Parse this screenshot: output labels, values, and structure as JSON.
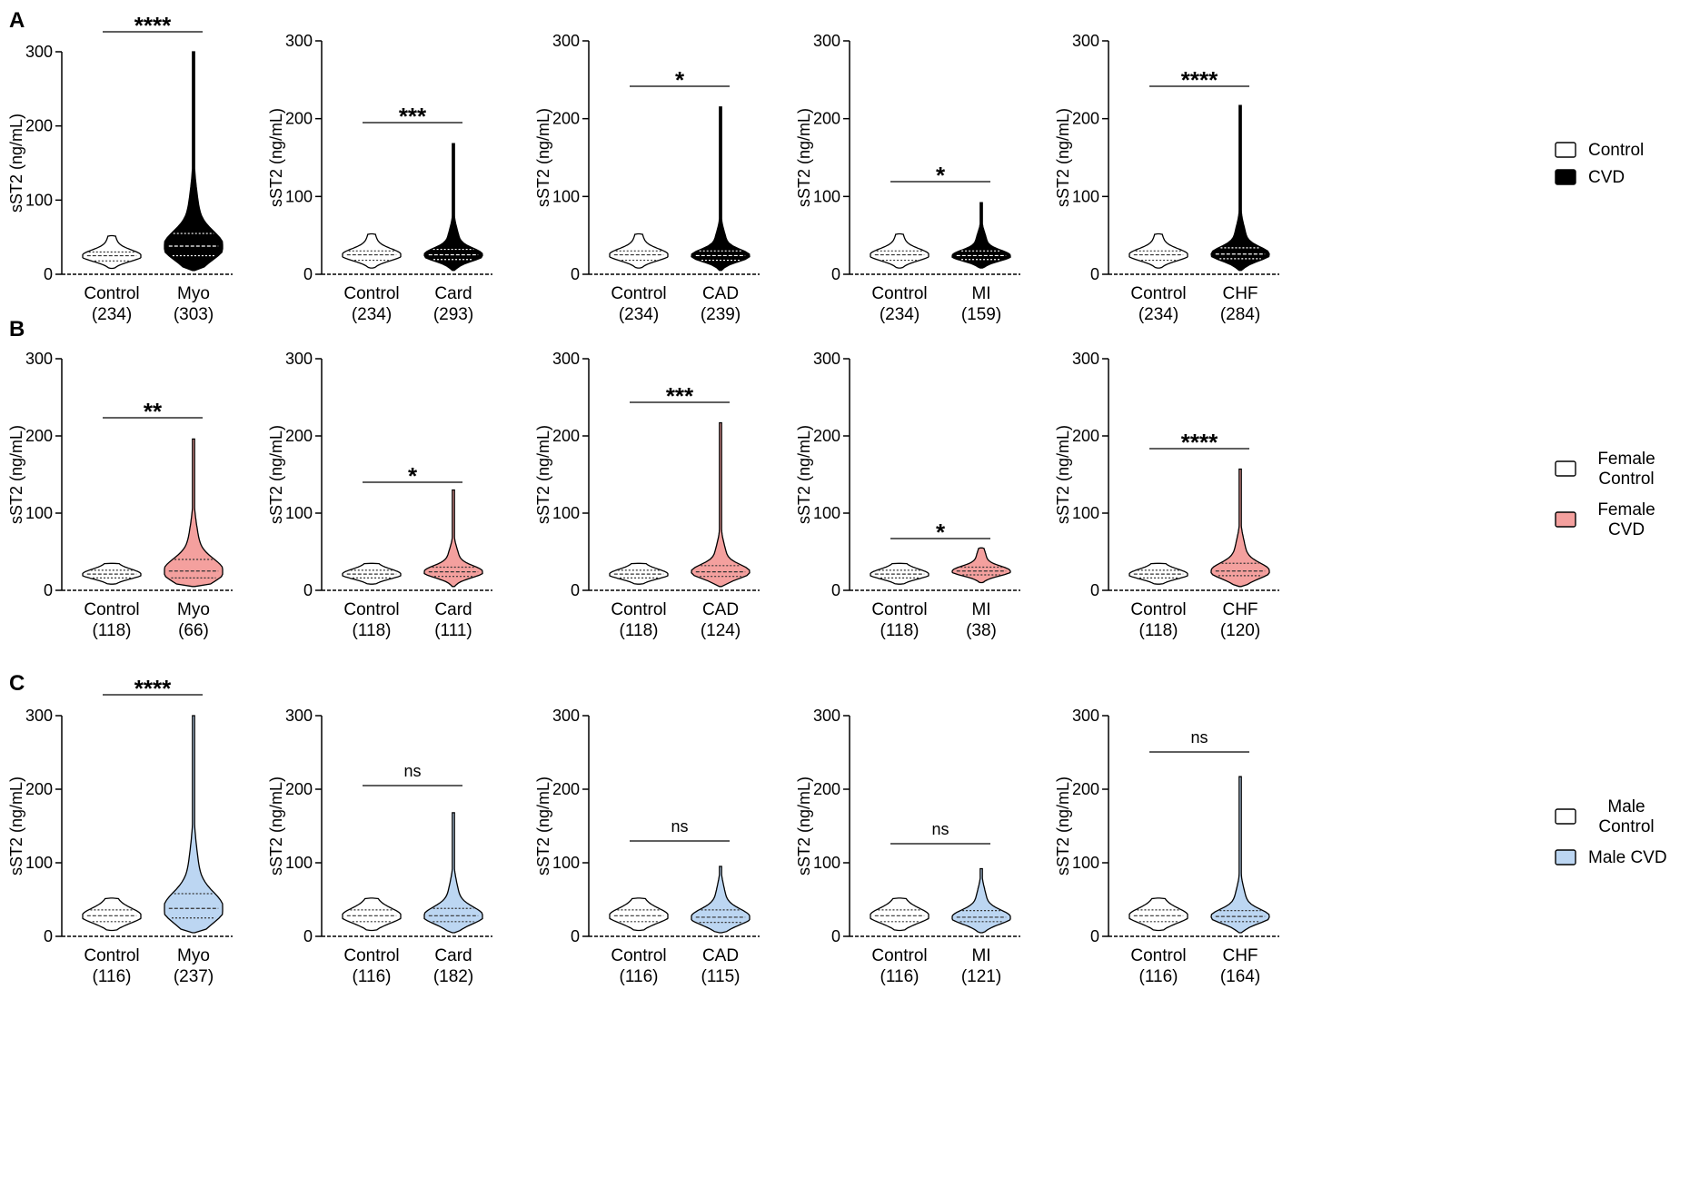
{
  "figure": {
    "y_axis_label": "sST2 (ng/mL)",
    "y_ticks": [
      "0",
      "100",
      "200",
      "300"
    ],
    "control_label": "Control",
    "rows": [
      {
        "panel_letter": "A",
        "legend": [
          {
            "lines": [
              "Control"
            ],
            "fill": "#ffffff"
          },
          {
            "lines": [
              "CVD"
            ],
            "fill": "#000000"
          }
        ]
      },
      {
        "panel_letter": "B",
        "legend": [
          {
            "lines": [
              "Female",
              "Control"
            ],
            "fill": "#ffffff"
          },
          {
            "lines": [
              "Female",
              "CVD"
            ],
            "fill": "#f4a09e"
          }
        ]
      },
      {
        "panel_letter": "C",
        "legend": [
          {
            "lines": [
              "Male",
              "Control"
            ],
            "fill": "#ffffff"
          },
          {
            "lines": [
              "Male CVD"
            ],
            "fill": "#bcd6f2"
          }
        ]
      }
    ]
  },
  "chart_data": [
    {
      "type": "violin",
      "row": "A",
      "title": "",
      "xlabel": "",
      "ylabel": "sST2 (ng/mL)",
      "ylim": [
        0,
        300
      ],
      "categories": [
        "Control",
        "Myo"
      ],
      "n": [
        "(234)",
        "(303)"
      ],
      "significance": "****",
      "series": [
        {
          "name": "Control",
          "median": 25,
          "q1": 18,
          "q3": 30,
          "min": 8,
          "max": 52,
          "fill": "#ffffff"
        },
        {
          "name": "Myo",
          "median": 38,
          "q1": 25,
          "q3": 55,
          "min": 5,
          "max": 300,
          "fill": "#000000"
        }
      ]
    },
    {
      "type": "violin",
      "row": "A",
      "title": "",
      "xlabel": "",
      "ylabel": "sST2 (ng/mL)",
      "ylim": [
        0,
        300
      ],
      "categories": [
        "Control",
        "Card"
      ],
      "n": [
        "(234)",
        "(293)"
      ],
      "significance": "***",
      "series": [
        {
          "name": "Control",
          "median": 25,
          "q1": 18,
          "q3": 30,
          "min": 8,
          "max": 52,
          "fill": "#ffffff"
        },
        {
          "name": "Card",
          "median": 25,
          "q1": 19,
          "q3": 32,
          "min": 5,
          "max": 168,
          "fill": "#000000"
        }
      ]
    },
    {
      "type": "violin",
      "row": "A",
      "title": "",
      "xlabel": "",
      "ylabel": "sST2 (ng/mL)",
      "ylim": [
        0,
        300
      ],
      "categories": [
        "Control",
        "CAD"
      ],
      "n": [
        "(234)",
        "(239)"
      ],
      "significance": "*",
      "series": [
        {
          "name": "Control",
          "median": 25,
          "q1": 18,
          "q3": 30,
          "min": 8,
          "max": 52,
          "fill": "#ffffff"
        },
        {
          "name": "CAD",
          "median": 24,
          "q1": 18,
          "q3": 30,
          "min": 5,
          "max": 215,
          "fill": "#000000"
        }
      ]
    },
    {
      "type": "violin",
      "row": "A",
      "title": "",
      "xlabel": "",
      "ylabel": "sST2 (ng/mL)",
      "ylim": [
        0,
        300
      ],
      "categories": [
        "Control",
        "MI"
      ],
      "n": [
        "(234)",
        "(159)"
      ],
      "significance": "*",
      "series": [
        {
          "name": "Control",
          "median": 25,
          "q1": 18,
          "q3": 30,
          "min": 8,
          "max": 52,
          "fill": "#ffffff"
        },
        {
          "name": "MI",
          "median": 24,
          "q1": 19,
          "q3": 30,
          "min": 8,
          "max": 92,
          "fill": "#000000"
        }
      ]
    },
    {
      "type": "violin",
      "row": "A",
      "title": "",
      "xlabel": "",
      "ylabel": "sST2 (ng/mL)",
      "ylim": [
        0,
        300
      ],
      "categories": [
        "Control",
        "CHF"
      ],
      "n": [
        "(234)",
        "(284)"
      ],
      "significance": "****",
      "series": [
        {
          "name": "Control",
          "median": 25,
          "q1": 18,
          "q3": 30,
          "min": 8,
          "max": 52,
          "fill": "#ffffff"
        },
        {
          "name": "CHF",
          "median": 26,
          "q1": 20,
          "q3": 34,
          "min": 5,
          "max": 217,
          "fill": "#000000"
        }
      ]
    },
    {
      "type": "violin",
      "row": "B",
      "title": "",
      "xlabel": "",
      "ylabel": "sST2 (ng/mL)",
      "ylim": [
        0,
        300
      ],
      "categories": [
        "Control",
        "Myo"
      ],
      "n": [
        "(118)",
        "(66)"
      ],
      "significance": "**",
      "series": [
        {
          "name": "Control",
          "median": 21,
          "q1": 16,
          "q3": 26,
          "min": 8,
          "max": 35,
          "fill": "#ffffff"
        },
        {
          "name": "Myo",
          "median": 25,
          "q1": 16,
          "q3": 40,
          "min": 5,
          "max": 196,
          "fill": "#f4a09e"
        }
      ]
    },
    {
      "type": "violin",
      "row": "B",
      "title": "",
      "xlabel": "",
      "ylabel": "sST2 (ng/mL)",
      "ylim": [
        0,
        300
      ],
      "categories": [
        "Control",
        "Card"
      ],
      "n": [
        "(118)",
        "(111)"
      ],
      "significance": "*",
      "series": [
        {
          "name": "Control",
          "median": 21,
          "q1": 16,
          "q3": 26,
          "min": 8,
          "max": 35,
          "fill": "#ffffff"
        },
        {
          "name": "Card",
          "median": 24,
          "q1": 18,
          "q3": 30,
          "min": 5,
          "max": 130,
          "fill": "#f4a09e"
        }
      ]
    },
    {
      "type": "violin",
      "row": "B",
      "title": "",
      "xlabel": "",
      "ylabel": "sST2 (ng/mL)",
      "ylim": [
        0,
        300
      ],
      "categories": [
        "Control",
        "CAD"
      ],
      "n": [
        "(118)",
        "(124)"
      ],
      "significance": "***",
      "series": [
        {
          "name": "Control",
          "median": 21,
          "q1": 16,
          "q3": 26,
          "min": 8,
          "max": 35,
          "fill": "#ffffff"
        },
        {
          "name": "CAD",
          "median": 24,
          "q1": 18,
          "q3": 32,
          "min": 5,
          "max": 217,
          "fill": "#f4a09e"
        }
      ]
    },
    {
      "type": "violin",
      "row": "B",
      "title": "",
      "xlabel": "",
      "ylabel": "sST2 (ng/mL)",
      "ylim": [
        0,
        300
      ],
      "categories": [
        "Control",
        "MI"
      ],
      "n": [
        "(118)",
        "(38)"
      ],
      "significance": "*",
      "series": [
        {
          "name": "Control",
          "median": 21,
          "q1": 16,
          "q3": 26,
          "min": 8,
          "max": 35,
          "fill": "#ffffff"
        },
        {
          "name": "MI",
          "median": 25,
          "q1": 20,
          "q3": 30,
          "min": 10,
          "max": 55,
          "fill": "#f4a09e"
        }
      ]
    },
    {
      "type": "violin",
      "row": "B",
      "title": "",
      "xlabel": "",
      "ylabel": "sST2 (ng/mL)",
      "ylim": [
        0,
        300
      ],
      "categories": [
        "Control",
        "CHF"
      ],
      "n": [
        "(118)",
        "(120)"
      ],
      "significance": "****",
      "series": [
        {
          "name": "Control",
          "median": 21,
          "q1": 16,
          "q3": 26,
          "min": 8,
          "max": 35,
          "fill": "#ffffff"
        },
        {
          "name": "CHF",
          "median": 25,
          "q1": 19,
          "q3": 35,
          "min": 5,
          "max": 157,
          "fill": "#f4a09e"
        }
      ]
    },
    {
      "type": "violin",
      "row": "C",
      "title": "",
      "xlabel": "",
      "ylabel": "sST2 (ng/mL)",
      "ylim": [
        0,
        300
      ],
      "categories": [
        "Control",
        "Myo"
      ],
      "n": [
        "(116)",
        "(237)"
      ],
      "significance": "****",
      "series": [
        {
          "name": "Control",
          "median": 28,
          "q1": 20,
          "q3": 36,
          "min": 8,
          "max": 52,
          "fill": "#ffffff"
        },
        {
          "name": "Myo",
          "median": 38,
          "q1": 25,
          "q3": 58,
          "min": 5,
          "max": 300,
          "fill": "#bcd6f2"
        }
      ]
    },
    {
      "type": "violin",
      "row": "C",
      "title": "",
      "xlabel": "",
      "ylabel": "sST2 (ng/mL)",
      "ylim": [
        0,
        300
      ],
      "categories": [
        "Control",
        "Card"
      ],
      "n": [
        "(116)",
        "(182)"
      ],
      "significance": "ns",
      "series": [
        {
          "name": "Control",
          "median": 28,
          "q1": 20,
          "q3": 36,
          "min": 8,
          "max": 52,
          "fill": "#ffffff"
        },
        {
          "name": "Card",
          "median": 28,
          "q1": 20,
          "q3": 38,
          "min": 5,
          "max": 168,
          "fill": "#bcd6f2"
        }
      ]
    },
    {
      "type": "violin",
      "row": "C",
      "title": "",
      "xlabel": "",
      "ylabel": "sST2 (ng/mL)",
      "ylim": [
        0,
        300
      ],
      "categories": [
        "Control",
        "CAD"
      ],
      "n": [
        "(116)",
        "(115)"
      ],
      "significance": "ns",
      "series": [
        {
          "name": "Control",
          "median": 28,
          "q1": 20,
          "q3": 36,
          "min": 8,
          "max": 52,
          "fill": "#ffffff"
        },
        {
          "name": "CAD",
          "median": 26,
          "q1": 19,
          "q3": 36,
          "min": 5,
          "max": 95,
          "fill": "#bcd6f2"
        }
      ]
    },
    {
      "type": "violin",
      "row": "C",
      "title": "",
      "xlabel": "",
      "ylabel": "sST2 (ng/mL)",
      "ylim": [
        0,
        300
      ],
      "categories": [
        "Control",
        "MI"
      ],
      "n": [
        "(116)",
        "(121)"
      ],
      "significance": "ns",
      "series": [
        {
          "name": "Control",
          "median": 28,
          "q1": 20,
          "q3": 36,
          "min": 8,
          "max": 52,
          "fill": "#ffffff"
        },
        {
          "name": "MI",
          "median": 26,
          "q1": 20,
          "q3": 35,
          "min": 5,
          "max": 92,
          "fill": "#bcd6f2"
        }
      ]
    },
    {
      "type": "violin",
      "row": "C",
      "title": "",
      "xlabel": "",
      "ylabel": "sST2 (ng/mL)",
      "ylim": [
        0,
        300
      ],
      "categories": [
        "Control",
        "CHF"
      ],
      "n": [
        "(116)",
        "(164)"
      ],
      "significance": "ns",
      "series": [
        {
          "name": "Control",
          "median": 28,
          "q1": 20,
          "q3": 36,
          "min": 8,
          "max": 52,
          "fill": "#ffffff"
        },
        {
          "name": "CHF",
          "median": 27,
          "q1": 20,
          "q3": 35,
          "min": 5,
          "max": 217,
          "fill": "#bcd6f2"
        }
      ]
    }
  ]
}
